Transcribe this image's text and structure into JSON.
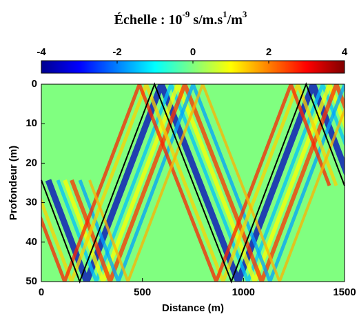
{
  "chart_data": {
    "type": "line",
    "title_parts": [
      "Échelle : 10",
      "-9",
      " s/m.s",
      "1",
      "/m",
      "3"
    ],
    "colorbar": {
      "colormap": "jet",
      "clim": [
        -4,
        4
      ],
      "ticks": [
        -4,
        -2,
        0,
        2,
        4
      ]
    },
    "x_label": "Distance (m)",
    "y_label": "Profondeur (m)",
    "xlim": [
      0,
      1500
    ],
    "xticks": [
      0,
      500,
      1000,
      1500
    ],
    "ylim": [
      50,
      0
    ],
    "yticks": [
      0,
      10,
      20,
      30,
      40,
      50
    ],
    "y_reversed": true,
    "series": [
      {
        "color": "#000000",
        "x": [
          0,
          190,
          560,
          940,
          1310,
          1500
        ],
        "values": [
          24.3,
          50,
          0,
          50,
          0,
          25.7
        ]
      }
    ]
  }
}
